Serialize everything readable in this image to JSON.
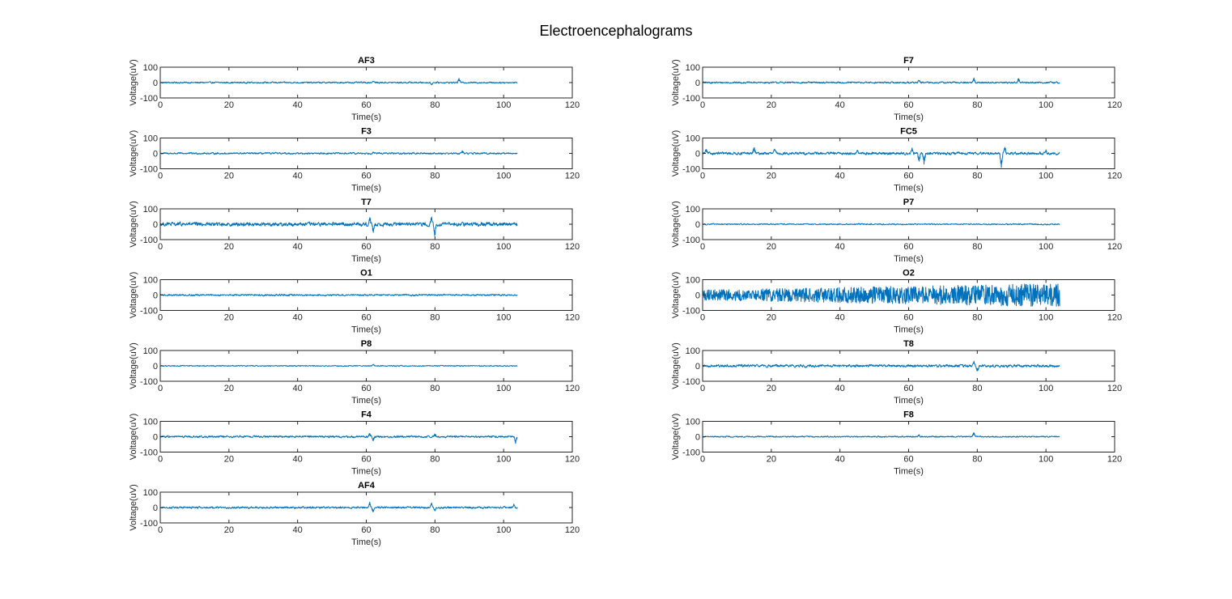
{
  "figure": {
    "title": "Electroencephalograms",
    "line_color": "#0072BD"
  },
  "chart_data": [
    {
      "type": "line",
      "title": "AF3",
      "xlabel": "Time(s)",
      "ylabel": "Voltage(uV)",
      "xlim": [
        0,
        120
      ],
      "ylim": [
        -100,
        100
      ],
      "x_ticks": [
        0,
        20,
        40,
        60,
        80,
        100,
        120
      ],
      "y_ticks": [
        -100,
        0,
        100
      ],
      "x_end": 104,
      "amplitude": 7,
      "bursts": [
        {
          "x": 87,
          "y": 28
        },
        {
          "x": 79,
          "y": -14
        },
        {
          "x": 62,
          "y": 12
        }
      ],
      "grid": false
    },
    {
      "type": "line",
      "title": "F7",
      "xlabel": "Time(s)",
      "ylabel": "Voltage(uV)",
      "xlim": [
        0,
        120
      ],
      "ylim": [
        -100,
        100
      ],
      "x_ticks": [
        0,
        20,
        40,
        60,
        80,
        100,
        120
      ],
      "y_ticks": [
        -100,
        0,
        100
      ],
      "x_end": 104,
      "amplitude": 8,
      "bursts": [
        {
          "x": 79,
          "y": 32
        },
        {
          "x": 92,
          "y": 30
        },
        {
          "x": 63,
          "y": 18
        }
      ],
      "grid": false
    },
    {
      "type": "line",
      "title": "F3",
      "xlabel": "Time(s)",
      "ylabel": "Voltage(uV)",
      "xlim": [
        0,
        120
      ],
      "ylim": [
        -100,
        100
      ],
      "x_ticks": [
        0,
        20,
        40,
        60,
        80,
        100,
        120
      ],
      "y_ticks": [
        -100,
        0,
        100
      ],
      "x_end": 104,
      "amplitude": 8,
      "bursts": [
        {
          "x": 62,
          "y": 15
        },
        {
          "x": 88,
          "y": 15
        }
      ],
      "grid": false
    },
    {
      "type": "line",
      "title": "FC5",
      "xlabel": "Time(s)",
      "ylabel": "Voltage(uV)",
      "xlim": [
        0,
        120
      ],
      "ylim": [
        -100,
        100
      ],
      "x_ticks": [
        0,
        20,
        40,
        60,
        80,
        100,
        120
      ],
      "y_ticks": [
        -100,
        0,
        100
      ],
      "x_end": 104,
      "amplitude": 12,
      "bursts": [
        {
          "x": 1,
          "y": 28
        },
        {
          "x": 15,
          "y": 42
        },
        {
          "x": 21,
          "y": 30
        },
        {
          "x": 45,
          "y": 20
        },
        {
          "x": 61,
          "y": 35
        },
        {
          "x": 63,
          "y": -60
        },
        {
          "x": 64.5,
          "y": -70
        },
        {
          "x": 87,
          "y": -98
        },
        {
          "x": 88,
          "y": 45
        },
        {
          "x": 100,
          "y": 20
        }
      ],
      "grid": false
    },
    {
      "type": "line",
      "title": "T7",
      "xlabel": "Time(s)",
      "ylabel": "Voltage(uV)",
      "xlim": [
        0,
        120
      ],
      "ylim": [
        -100,
        100
      ],
      "x_ticks": [
        0,
        20,
        40,
        60,
        80,
        100,
        120
      ],
      "y_ticks": [
        -100,
        0,
        100
      ],
      "x_end": 104,
      "amplitude": 18,
      "bursts": [
        {
          "x": 61,
          "y": 45
        },
        {
          "x": 62,
          "y": -55
        },
        {
          "x": 79,
          "y": 40
        },
        {
          "x": 80,
          "y": -80
        }
      ],
      "grid": false
    },
    {
      "type": "line",
      "title": "P7",
      "xlabel": "Time(s)",
      "ylabel": "Voltage(uV)",
      "xlim": [
        0,
        120
      ],
      "ylim": [
        -100,
        100
      ],
      "x_ticks": [
        0,
        20,
        40,
        60,
        80,
        100,
        120
      ],
      "y_ticks": [
        -100,
        0,
        100
      ],
      "x_end": 104,
      "amplitude": 6,
      "bursts": [],
      "grid": false
    },
    {
      "type": "line",
      "title": "O1",
      "xlabel": "Time(s)",
      "ylabel": "Voltage(uV)",
      "xlim": [
        0,
        120
      ],
      "ylim": [
        -100,
        100
      ],
      "x_ticks": [
        0,
        20,
        40,
        60,
        80,
        100,
        120
      ],
      "y_ticks": [
        -100,
        0,
        100
      ],
      "x_end": 104,
      "amplitude": 8,
      "bursts": [],
      "grid": false
    },
    {
      "type": "line",
      "title": "O2",
      "xlabel": "Time(s)",
      "ylabel": "Voltage(uV)",
      "xlim": [
        0,
        120
      ],
      "ylim": [
        -100,
        100
      ],
      "x_ticks": [
        0,
        20,
        40,
        60,
        80,
        100,
        120
      ],
      "y_ticks": [
        -100,
        0,
        100
      ],
      "x_end": 104,
      "amplitude": 55,
      "bursts": [],
      "grid": false
    },
    {
      "type": "line",
      "title": "P8",
      "xlabel": "Time(s)",
      "ylabel": "Voltage(uV)",
      "xlim": [
        0,
        120
      ],
      "ylim": [
        -100,
        100
      ],
      "x_ticks": [
        0,
        20,
        40,
        60,
        80,
        100,
        120
      ],
      "y_ticks": [
        -100,
        0,
        100
      ],
      "x_end": 104,
      "amplitude": 5,
      "bursts": [
        {
          "x": 62,
          "y": 12
        }
      ],
      "grid": false
    },
    {
      "type": "line",
      "title": "T8",
      "xlabel": "Time(s)",
      "ylabel": "Voltage(uV)",
      "xlim": [
        0,
        120
      ],
      "ylim": [
        -100,
        100
      ],
      "x_ticks": [
        0,
        20,
        40,
        60,
        80,
        100,
        120
      ],
      "y_ticks": [
        -100,
        0,
        100
      ],
      "x_end": 104,
      "amplitude": 12,
      "bursts": [
        {
          "x": 79,
          "y": 30
        },
        {
          "x": 80,
          "y": -45
        }
      ],
      "grid": false
    },
    {
      "type": "line",
      "title": "F4",
      "xlabel": "Time(s)",
      "ylabel": "Voltage(uV)",
      "xlim": [
        0,
        120
      ],
      "ylim": [
        -100,
        100
      ],
      "x_ticks": [
        0,
        20,
        40,
        60,
        80,
        100,
        120
      ],
      "y_ticks": [
        -100,
        0,
        100
      ],
      "x_end": 104,
      "amplitude": 9,
      "bursts": [
        {
          "x": 61,
          "y": 25
        },
        {
          "x": 62,
          "y": -25
        },
        {
          "x": 80,
          "y": 22
        },
        {
          "x": 103.5,
          "y": -40
        }
      ],
      "grid": false
    },
    {
      "type": "line",
      "title": "F8",
      "xlabel": "Time(s)",
      "ylabel": "Voltage(uV)",
      "xlim": [
        0,
        120
      ],
      "ylim": [
        -100,
        100
      ],
      "x_ticks": [
        0,
        20,
        40,
        60,
        80,
        100,
        120
      ],
      "y_ticks": [
        -100,
        0,
        100
      ],
      "x_end": 104,
      "amplitude": 6,
      "bursts": [
        {
          "x": 79,
          "y": 28
        },
        {
          "x": 63,
          "y": 14
        }
      ],
      "grid": false
    },
    {
      "type": "line",
      "title": "AF4",
      "xlabel": "Time(s)",
      "ylabel": "Voltage(uV)",
      "xlim": [
        0,
        120
      ],
      "ylim": [
        -100,
        100
      ],
      "x_ticks": [
        0,
        20,
        40,
        60,
        80,
        100,
        120
      ],
      "y_ticks": [
        -100,
        0,
        100
      ],
      "x_end": 104,
      "amplitude": 9,
      "bursts": [
        {
          "x": 61,
          "y": 30
        },
        {
          "x": 62,
          "y": -30
        },
        {
          "x": 79,
          "y": 25
        },
        {
          "x": 80,
          "y": -25
        },
        {
          "x": 103,
          "y": 20
        }
      ],
      "grid": false
    }
  ]
}
